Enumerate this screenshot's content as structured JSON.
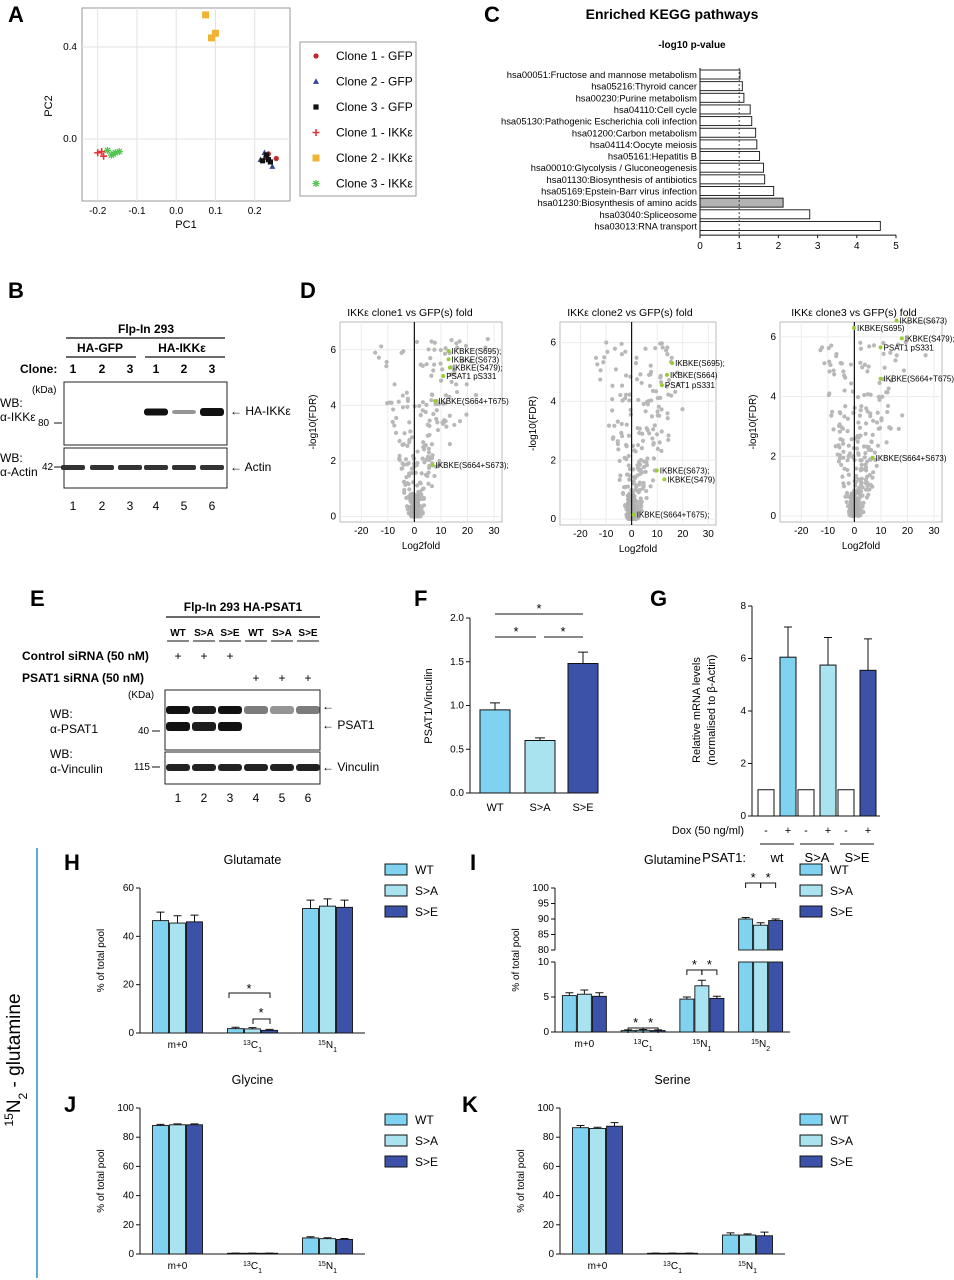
{
  "colors": {
    "wt": "#7fd3f0",
    "sa": "#a9e3ef",
    "se": "#3b52a8",
    "grey": "#b3b3b3",
    "green": "#9acd32",
    "gfp_red": "#c0262c",
    "gfp_blue": "#36449a",
    "black": "#111111",
    "ikk_red": "#e8323a",
    "ikk_orange": "#f2b334",
    "ikk_green": "#50c84e"
  },
  "panelA": {
    "label": "A",
    "xlabel": "PC1",
    "ylabel": "PC2",
    "xticks": [
      "-0.2",
      "-0.1",
      "0.0",
      "0.1",
      "0.2"
    ],
    "yticks": [
      "0.0",
      "0.4"
    ],
    "legend": [
      "Clone 1 - GFP",
      "Clone 2 - GFP",
      "Clone 3 - GFP",
      "Clone 1 - IKKε",
      "Clone 2 - IKKε",
      "Clone 3 - IKKε"
    ],
    "chart_data": {
      "type": "scatter",
      "xlabel": "PC1",
      "ylabel": "PC2",
      "xlim": [
        -0.24,
        0.29
      ],
      "ylim": [
        -0.27,
        0.57
      ],
      "series": [
        {
          "name": "Clone 1 - GFP",
          "x": [
            0.255,
            0.235,
            0.228
          ],
          "y": [
            -0.085,
            -0.065,
            -0.08
          ]
        },
        {
          "name": "Clone 2 - GFP",
          "x": [
            0.245,
            0.225,
            0.215
          ],
          "y": [
            -0.12,
            -0.06,
            -0.09
          ]
        },
        {
          "name": "Clone 3 - GFP",
          "x": [
            0.24,
            0.23,
            0.22,
            0.235
          ],
          "y": [
            -0.1,
            -0.07,
            -0.095,
            -0.09
          ]
        },
        {
          "name": "Clone 1 - IKKε",
          "x": [
            -0.2,
            -0.185,
            -0.19
          ],
          "y": [
            -0.06,
            -0.075,
            -0.055
          ]
        },
        {
          "name": "Clone 2 - IKKε",
          "x": [
            0.075,
            0.09,
            0.1
          ],
          "y": [
            0.54,
            0.44,
            0.46
          ]
        },
        {
          "name": "Clone 3 - IKKε",
          "x": [
            -0.175,
            -0.165,
            -0.155,
            -0.145,
            -0.16
          ],
          "y": [
            -0.05,
            -0.07,
            -0.06,
            -0.055,
            -0.065
          ]
        }
      ]
    }
  },
  "panelB": {
    "label": "B",
    "title": "Flp-In 293",
    "group1": "HA-GFP",
    "group2": "HA-IKKε",
    "clone_label": "Clone:",
    "clones": [
      "1",
      "2",
      "3",
      "1",
      "2",
      "3"
    ],
    "kda": "(kDa)",
    "m80": "80",
    "m42": "42",
    "wb1a": "WB:",
    "wb1b": "α-IKKε",
    "wb2a": "WB:",
    "wb2b": "α-Actin",
    "band1": "← HA-IKKε",
    "band2": "← Actin",
    "lanes": [
      "1",
      "2",
      "3",
      "4",
      "5",
      "6"
    ]
  },
  "panelC": {
    "label": "C",
    "title": "Enriched KEGG pathways",
    "subtitle": "-log10 p-value",
    "xticks": [
      "0",
      "1",
      "2",
      "3",
      "4",
      "5"
    ],
    "chart_data": {
      "type": "bar",
      "orientation": "horizontal",
      "xlim": [
        0,
        5
      ],
      "threshold": 1,
      "categories": [
        "hsa00051:Fructose and mannose metabolism",
        "hsa05216:Thyroid cancer",
        "hsa00230:Purine metabolism",
        "hsa04110:Cell cycle",
        "hsa05130:Pathogenic Escherichia coli infection",
        "hsa01200:Carbon metabolism",
        "hsa04114:Oocyte meiosis",
        "hsa05161:Hepatitis B",
        "hsa00010:Glycolysis / Gluconeogenesis",
        "hsa01130:Biosynthesis of antibiotics",
        "hsa05169:Epstein-Barr virus infection",
        "hsa01230:Biosynthesis of amino acids",
        "hsa03040:Spliceosome",
        "hsa03013:RNA transport"
      ],
      "values": [
        1.02,
        1.08,
        1.12,
        1.28,
        1.32,
        1.42,
        1.45,
        1.52,
        1.62,
        1.65,
        1.88,
        2.12,
        2.8,
        4.6
      ],
      "highlight": "hsa01230:Biosynthesis of amino acids"
    }
  },
  "panelD": {
    "label": "D",
    "xlabel": "Log2fold",
    "ylabel": "-log10(FDR)",
    "plots": [
      {
        "title": "IKKε clone1 vs GFP(s) fold",
        "xticks": [
          "-20",
          "-10",
          "0",
          "10",
          "20",
          "30"
        ],
        "yticks": [
          "0",
          "2",
          "4",
          "6"
        ],
        "xlim": [
          -28,
          33
        ],
        "ylim": [
          -0.2,
          7
        ],
        "labels": [
          {
            "t": "IKBKE(S695);",
            "x": 14,
            "y": 5.85
          },
          {
            "t": "IKBKE(S673)",
            "x": 14,
            "y": 5.55
          },
          {
            "t": "IKBKE(S479);",
            "x": 14.5,
            "y": 5.25
          },
          {
            "t": "PSAT1 pS331",
            "x": 12,
            "y": 4.95
          },
          {
            "t": "IKBKE(S664+T675)",
            "x": 9,
            "y": 4.05
          },
          {
            "t": "IKBKE(S664+S673);",
            "x": 8,
            "y": 1.75
          }
        ]
      },
      {
        "title": "IKKε clone2 vs GFP(s) fold",
        "xticks": [
          "-20",
          "-10",
          "0",
          "10",
          "20",
          "30"
        ],
        "yticks": [
          "0",
          "2",
          "4",
          "6"
        ],
        "xlim": [
          -28,
          33
        ],
        "ylim": [
          -0.2,
          6.7
        ],
        "labels": [
          {
            "t": "IKBKE(S695);",
            "x": 17,
            "y": 5.2
          },
          {
            "t": "IKBKE(S664)",
            "x": 15,
            "y": 4.8
          },
          {
            "t": "PSAT1 pS331",
            "x": 13,
            "y": 4.45
          },
          {
            "t": "IKBKE(S673);",
            "x": 11,
            "y": 1.55
          },
          {
            "t": "IKBKE(S479)",
            "x": 14,
            "y": 1.25
          },
          {
            "t": "IKBKE(S664+T675);",
            "x": 2,
            "y": 0.05
          }
        ]
      },
      {
        "title": "IKKε clone3 vs GFP(s) fold",
        "xticks": [
          "-20",
          "-10",
          "0",
          "10",
          "20",
          "30"
        ],
        "yticks": [
          "0",
          "2",
          "4",
          "6"
        ],
        "xlim": [
          -28,
          33
        ],
        "ylim": [
          -0.2,
          6.5
        ],
        "labels": [
          {
            "t": "IKBKE(S673)",
            "x": 17,
            "y": 6.45
          },
          {
            "t": "IKBKE(S695)",
            "x": 1,
            "y": 6.2
          },
          {
            "t": "IKBKE(S479);",
            "x": 19,
            "y": 5.85
          },
          {
            "t": "PSAT1 pS331",
            "x": 11,
            "y": 5.55
          },
          {
            "t": "IKBKE(S664+T675)",
            "x": 11,
            "y": 4.5
          },
          {
            "t": "IKBKE(S664+S673)",
            "x": 8,
            "y": 1.85
          }
        ]
      }
    ]
  },
  "panelE": {
    "label": "E",
    "title": "Flp-In 293 HA-PSAT1",
    "cols": [
      "WT",
      "S>A",
      "S>E",
      "WT",
      "S>A",
      "S>E"
    ],
    "ctrl": "Control siRNA (50 nM)",
    "psat": "PSAT1 siRNA (50 nM)",
    "plus": "+",
    "kda": "(KDa)",
    "m40": "40",
    "m115": "115",
    "wb1a": "WB:",
    "wb1b": "α-PSAT1",
    "wb2a": "WB:",
    "wb2b": "α-Vinculin",
    "band_arrow": "←",
    "band1": "← PSAT1",
    "band2": "← Vinculin",
    "lanes": [
      "1",
      "2",
      "3",
      "4",
      "5",
      "6"
    ]
  },
  "panelF": {
    "label": "F",
    "ylabel": "PSAT1/Vinculin",
    "yticks": [
      "0.0",
      "0.5",
      "1.0",
      "1.5",
      "2.0"
    ],
    "sig": "*",
    "chart_data": {
      "type": "bar",
      "categories": [
        "WT",
        "S>A",
        "S>E"
      ],
      "values": [
        0.95,
        0.6,
        1.48
      ],
      "errors": [
        0.08,
        0.03,
        0.13
      ],
      "ylim": [
        0,
        2
      ]
    }
  },
  "panelG": {
    "label": "G",
    "ylabel1": "Relative mRNA levels",
    "ylabel2": "(normalised to β-Actin)",
    "yticks": [
      "0",
      "2",
      "4",
      "6",
      "8"
    ],
    "dox": "Dox (50 ng/ml)",
    "psat": "PSAT1:",
    "groups": [
      "wt",
      "S>A",
      "S>E"
    ],
    "minus": "-",
    "plus": "+",
    "chart_data": {
      "type": "bar",
      "categories": [
        "-",
        "+",
        "-",
        "+",
        "-",
        "+"
      ],
      "groups": [
        "wt",
        "S>A",
        "S>E"
      ],
      "values": [
        1,
        6.05,
        1,
        5.75,
        1,
        5.55
      ],
      "errors": [
        0,
        1.15,
        0,
        1.05,
        0,
        1.2
      ],
      "ylim": [
        0,
        8
      ]
    }
  },
  "sideLabel": "15N2 - glutamine",
  "sideLabelParts": {
    "sup": "15",
    "n": "N",
    "sub": "2",
    "rest": " - glutamine"
  },
  "legend": [
    "WT",
    "S>A",
    "S>E"
  ],
  "panelH": {
    "label": "H",
    "title": "Glutamate",
    "ylabel": "% of total pool",
    "yticks": [
      "0",
      "20",
      "40",
      "60"
    ],
    "sig": "*",
    "chart_data": {
      "type": "bar",
      "categories": [
        "m+0",
        "13C1",
        "15N1"
      ],
      "series": [
        {
          "name": "WT",
          "values": [
            46.5,
            1.8,
            51.5
          ],
          "errors": [
            3.5,
            0.6,
            3.5
          ]
        },
        {
          "name": "S>A",
          "values": [
            45.5,
            1.7,
            52.5
          ],
          "errors": [
            3,
            0.5,
            3
          ]
        },
        {
          "name": "S>E",
          "values": [
            46,
            1.1,
            52
          ],
          "errors": [
            2.8,
            0.4,
            3
          ]
        }
      ],
      "ylim": [
        0,
        60
      ]
    }
  },
  "panelI": {
    "label": "I",
    "title": "Glutamine",
    "ylabel": "% of total pool",
    "yticks_low": [
      "0",
      "5",
      "10"
    ],
    "yticks_high": [
      "80",
      "85",
      "90",
      "95",
      "100"
    ],
    "sig": "*",
    "chart_data": {
      "type": "bar",
      "broken_axis": true,
      "categories": [
        "m+0",
        "13C1",
        "15N1",
        "15N2"
      ],
      "series": [
        {
          "name": "WT",
          "values": [
            5.2,
            0.2,
            4.7,
            90
          ],
          "errors": [
            0.4,
            0.1,
            0.3,
            0.5
          ]
        },
        {
          "name": "S>A",
          "values": [
            5.4,
            0.25,
            6.6,
            88
          ],
          "errors": [
            0.6,
            0.1,
            0.8,
            0.8
          ]
        },
        {
          "name": "S>E",
          "values": [
            5.1,
            0.2,
            4.8,
            89.5
          ],
          "errors": [
            0.5,
            0.1,
            0.3,
            0.5
          ]
        }
      ],
      "ylim": [
        0,
        100
      ]
    }
  },
  "panelJ": {
    "label": "J",
    "title": "Glycine",
    "ylabel": "% of total pool",
    "yticks": [
      "0",
      "20",
      "40",
      "60",
      "80",
      "100"
    ],
    "chart_data": {
      "type": "bar",
      "categories": [
        "m+0",
        "13C1",
        "15N1"
      ],
      "series": [
        {
          "name": "WT",
          "values": [
            88,
            0.5,
            11
          ],
          "errors": [
            0.8,
            0.1,
            0.8
          ]
        },
        {
          "name": "S>A",
          "values": [
            88.5,
            0.5,
            10.5
          ],
          "errors": [
            0.6,
            0.1,
            0.6
          ]
        },
        {
          "name": "S>E",
          "values": [
            88.5,
            0.5,
            10
          ],
          "errors": [
            0.6,
            0.1,
            0.6
          ]
        }
      ],
      "ylim": [
        0,
        100
      ]
    }
  },
  "panelK": {
    "label": "K",
    "title": "Serine",
    "ylabel": "% of total pool",
    "yticks": [
      "0",
      "20",
      "40",
      "60",
      "80",
      "100"
    ],
    "chart_data": {
      "type": "bar",
      "categories": [
        "m+0",
        "13C1",
        "15N1"
      ],
      "series": [
        {
          "name": "WT",
          "values": [
            86.5,
            0.5,
            13
          ],
          "errors": [
            1.5,
            0.1,
            1.5
          ]
        },
        {
          "name": "S>A",
          "values": [
            86,
            0.5,
            13
          ],
          "errors": [
            0.8,
            0.1,
            0.8
          ]
        },
        {
          "name": "S>E",
          "values": [
            87.5,
            0.5,
            12.5
          ],
          "errors": [
            2.5,
            0.1,
            2.5
          ]
        }
      ],
      "ylim": [
        0,
        100
      ]
    }
  }
}
